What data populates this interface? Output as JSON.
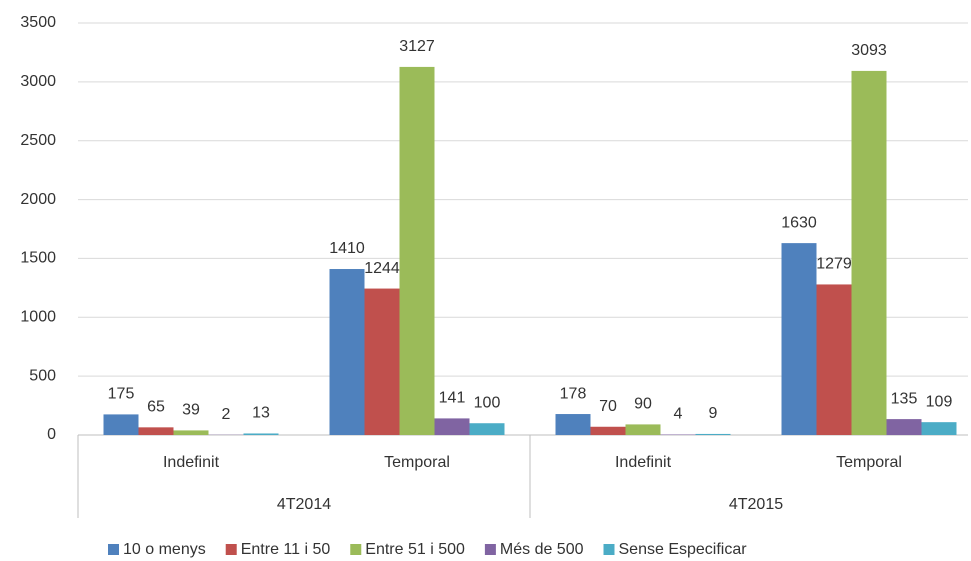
{
  "chart_data": {
    "type": "bar",
    "groups": [
      {
        "name": "4T2014",
        "categories": [
          "Indefinit",
          "Temporal"
        ]
      },
      {
        "name": "4T2015",
        "categories": [
          "Indefinit",
          "Temporal"
        ]
      }
    ],
    "series": [
      {
        "name": "10 o menys",
        "color": "#4f81bd",
        "values": [
          175,
          1410,
          178,
          1630
        ]
      },
      {
        "name": "Entre 11 i 50",
        "color": "#c0504d",
        "values": [
          65,
          1244,
          70,
          1279
        ]
      },
      {
        "name": "Entre 51 i 500",
        "color": "#9bbb59",
        "values": [
          39,
          3127,
          90,
          3093
        ]
      },
      {
        "name": "Més de 500",
        "color": "#8064a2",
        "values": [
          2,
          141,
          4,
          135
        ]
      },
      {
        "name": "Sense Especificar",
        "color": "#4bacc6",
        "values": [
          13,
          100,
          9,
          109
        ]
      }
    ],
    "ylim": [
      0,
      3500
    ],
    "yticks": [
      0,
      500,
      1000,
      1500,
      2000,
      2500,
      3000,
      3500
    ],
    "grid": true,
    "legend": "bottom"
  }
}
